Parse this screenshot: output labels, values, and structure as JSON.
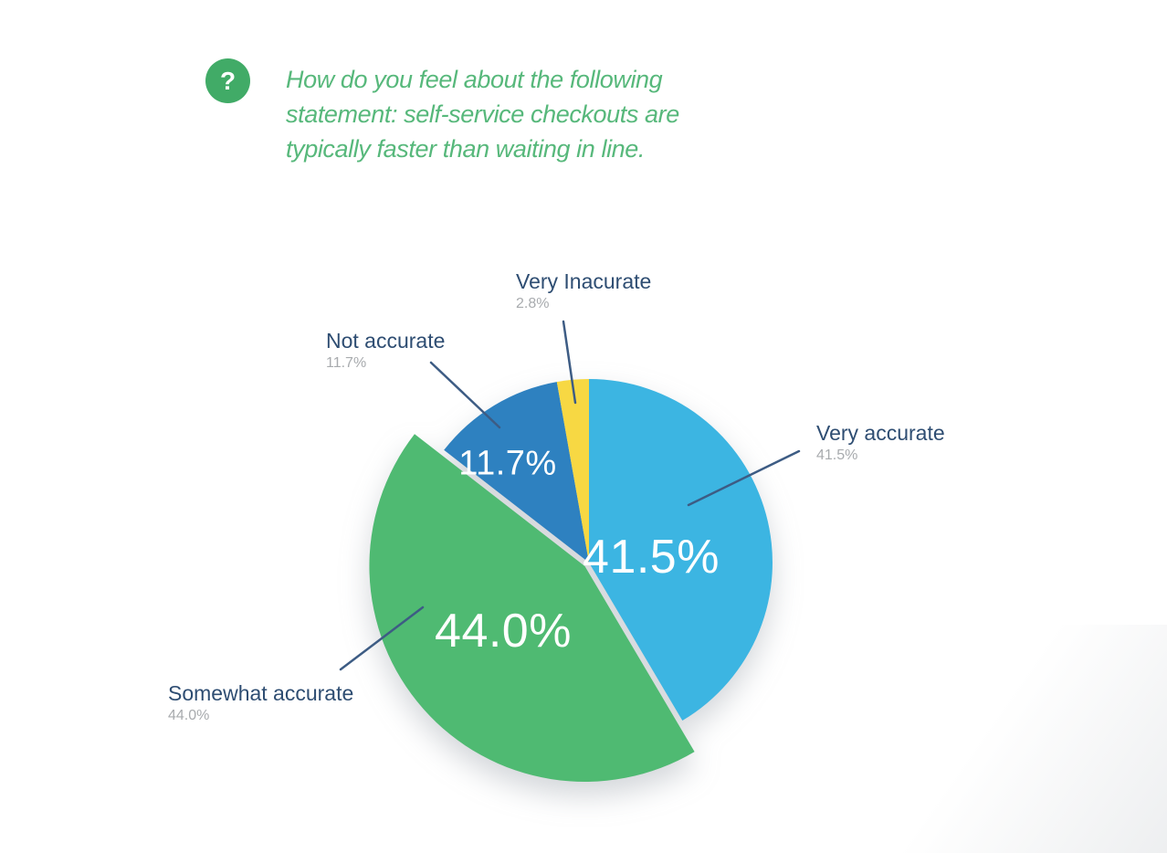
{
  "question": {
    "icon": "question-mark",
    "lines": [
      "How do you feel about the following",
      "statement: self-service checkouts are",
      "typically faster than waiting in line."
    ]
  },
  "chart_data": {
    "type": "pie",
    "title": "How do you feel about the following statement: self-service checkouts are typically faster than waiting in line.",
    "start_angle_deg": 0,
    "direction": "clockwise",
    "legend": "none",
    "slices": [
      {
        "label": "Very accurate",
        "value": 41.5,
        "display": "41.5%",
        "inner_label": "41.5%",
        "color": "#3cb5e2"
      },
      {
        "label": "Somewhat accurate",
        "value": 44.0,
        "display": "44.0%",
        "inner_label": "44.0%",
        "color": "#4fba72",
        "emphasis": "enlarged"
      },
      {
        "label": "Not accurate",
        "value": 11.7,
        "display": "11.7%",
        "inner_label": "11.7%",
        "color": "#2e81c0"
      },
      {
        "label": "Very Inacurate",
        "value": 2.8,
        "display": "2.8%",
        "inner_label": "",
        "color": "#f7d843"
      }
    ]
  },
  "colors": {
    "background": "#ffffff",
    "question_text": "#57b87b",
    "question_icon_bg": "#41ab67",
    "label_title": "#2e4d72",
    "label_value": "#a8abae",
    "leader_line": "#3d5c84",
    "inner_label": "#ffffff"
  },
  "icons": {
    "question_mark": "?"
  }
}
